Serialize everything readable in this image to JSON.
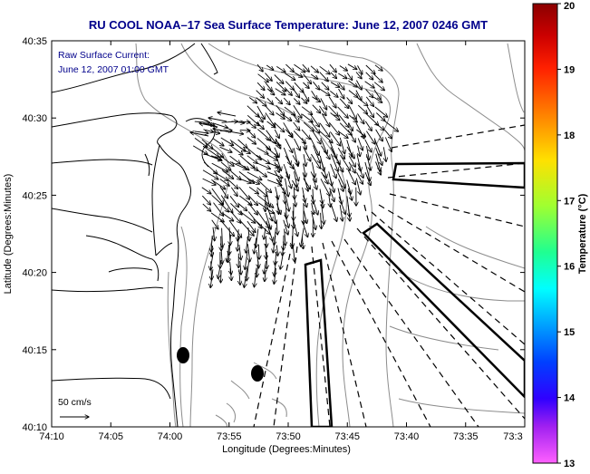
{
  "title": "RU COOL  NOAA–17  Sea Surface Temperature:  June 12, 2007 0246 GMT",
  "annotation": {
    "line1": "Raw Surface Current:",
    "line2": "June 12, 2007 01:00 GMT"
  },
  "axes": {
    "xlabel": "Longitude (Degrees:Minutes)",
    "ylabel": "Latitude (Degrees:Minutes)",
    "x_ticks": [
      "74:10",
      "74:05",
      "74:00",
      "73:55",
      "73:50",
      "73:45",
      "73:40",
      "73:35",
      "73:3"
    ],
    "y_ticks": [
      "40:35",
      "40:30",
      "40:25",
      "40:20",
      "40:15",
      "40:10"
    ]
  },
  "scale_label": "50 cm/s",
  "colorbar": {
    "label": "Temperature (°C)",
    "ticks": [
      "20",
      "19",
      "18",
      "17",
      "16",
      "15",
      "14",
      "13"
    ],
    "min": 13,
    "max": 20
  },
  "colors": {
    "title": "#00008b",
    "annotation": "#00008b",
    "land_outline": "#000000",
    "bathymetry": "#8c8c8c"
  }
}
